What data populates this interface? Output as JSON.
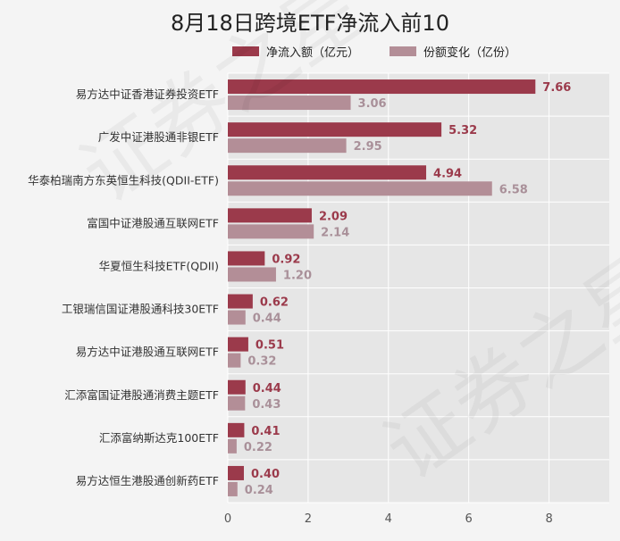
{
  "colors": {
    "net_inflow": "#9b3a4b",
    "share_change": "#b38e97",
    "plot_bg": "#e6e6e6",
    "grid": "#ffffff",
    "label_net": "#9b3a4b",
    "label_share": "#a99099"
  },
  "chart_data": {
    "type": "bar",
    "orientation": "horizontal",
    "title": "8月18日跨境ETF净流入前10",
    "categories": [
      "易方达中证香港证券投资ETF",
      "广发中证港股通非银ETF",
      "华泰柏瑞南方东英恒生科技(QDII-ETF)",
      "富国中证港股通互联网ETF",
      "华夏恒生科技ETF(QDII)",
      "工银瑞信国证港股通科技30ETF",
      "易方达中证港股通互联网ETF",
      "汇添富国证港股通消费主题ETF",
      "汇添富纳斯达克100ETF",
      "易方达恒生港股通创新药ETF"
    ],
    "series": [
      {
        "name": "净流入额（亿元）",
        "values": [
          7.66,
          5.32,
          4.94,
          2.09,
          0.92,
          0.62,
          0.51,
          0.44,
          0.41,
          0.4
        ],
        "labels": [
          "7.66",
          "5.32",
          "4.94",
          "2.09",
          "0.92",
          "0.62",
          "0.51",
          "0.44",
          "0.41",
          "0.40"
        ]
      },
      {
        "name": "份额变化（亿份）",
        "values": [
          3.06,
          2.95,
          6.58,
          2.14,
          1.2,
          0.44,
          0.32,
          0.43,
          0.22,
          0.24
        ],
        "labels": [
          "3.06",
          "2.95",
          "6.58",
          "2.14",
          "1.20",
          "0.44",
          "0.32",
          "0.43",
          "0.22",
          "0.24"
        ]
      }
    ],
    "xlim": [
      0,
      9.5
    ],
    "xticks": [
      0,
      2,
      4,
      6,
      8
    ],
    "grid": true,
    "legend": "top"
  },
  "watermark": {
    "text": "证券之星"
  }
}
